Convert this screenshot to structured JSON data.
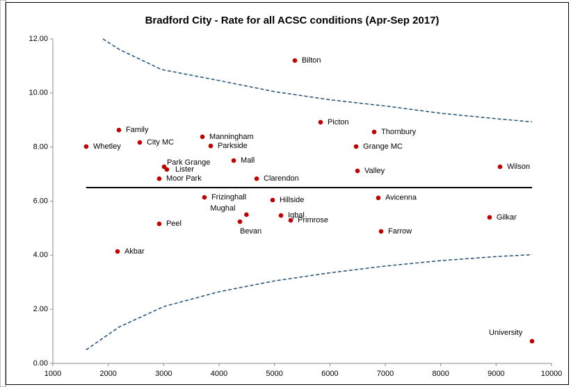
{
  "chart_data": {
    "type": "scatter",
    "title": "Bradford City - Rate for all ACSC conditions (Apr-Sep 2017)",
    "xlim": [
      1000,
      10000
    ],
    "xticks": [
      1000,
      2000,
      3000,
      4000,
      5000,
      6000,
      7000,
      8000,
      9000,
      10000
    ],
    "ylim": [
      0,
      12
    ],
    "yticks": [
      {
        "value": 0,
        "label": "0.00"
      },
      {
        "value": 2,
        "label": "2.00"
      },
      {
        "value": 4,
        "label": "4.00"
      },
      {
        "value": 6,
        "label": "6.00"
      },
      {
        "value": 8,
        "label": "8.00"
      },
      {
        "value": 10,
        "label": "10.00"
      },
      {
        "value": 12,
        "label": "12.00"
      }
    ],
    "points": {
      "color": "#c00000",
      "labels": [
        "Whetley",
        "Family",
        "City MC",
        "Manningham",
        "Parkside",
        "Park Grange",
        "Lister",
        "Moor Park",
        "Mall",
        "Clarendon",
        "Bilton",
        "Picton",
        "Thornbury",
        "Grange MC",
        "Valley",
        "Wilson",
        "Frizinghall",
        "Hillside",
        "Avicenna",
        "Mughal",
        "Iqbal",
        "Bevan",
        "Primrose",
        "Peel",
        "Farrow",
        "Gilkar",
        "Akbar",
        "University"
      ],
      "x": [
        1602,
        2192,
        2569,
        3699,
        3849,
        3008,
        3058,
        2920,
        4264,
        4678,
        5368,
        5832,
        6799,
        6473,
        6498,
        9071,
        3736,
        4966,
        6874,
        4494,
        5117,
        4376,
        5293,
        2920,
        6924,
        8882,
        2167,
        9648
      ],
      "y": [
        8.02,
        8.63,
        8.17,
        8.38,
        8.04,
        7.27,
        7.17,
        6.83,
        7.5,
        6.83,
        11.2,
        8.92,
        8.56,
        8.02,
        7.12,
        7.27,
        6.14,
        6.04,
        6.12,
        5.5,
        5.47,
        5.24,
        5.29,
        5.16,
        4.88,
        5.4,
        4.14,
        0.82
      ]
    },
    "lines": [
      {
        "color": "#000000",
        "dashed": false,
        "x": [
          1600,
          9650
        ],
        "y": [
          6.5,
          6.5
        ]
      },
      {
        "color": "#1f4e79",
        "dashed": true,
        "x": [
          1904,
          2200,
          2958,
          4000,
          5000,
          6000,
          7075,
          8000,
          9000,
          9650
        ],
        "y": [
          12.0,
          11.61,
          10.87,
          10.46,
          10.05,
          9.75,
          9.5,
          9.25,
          9.05,
          8.93
        ]
      },
      {
        "color": "#1f4e79",
        "dashed": true,
        "x": [
          1600,
          2200,
          3000,
          4000,
          5000,
          6000,
          7000,
          8000,
          9000,
          9650
        ],
        "y": [
          0.5,
          1.35,
          2.1,
          2.65,
          3.05,
          3.35,
          3.6,
          3.8,
          3.95,
          4.02
        ]
      }
    ]
  }
}
